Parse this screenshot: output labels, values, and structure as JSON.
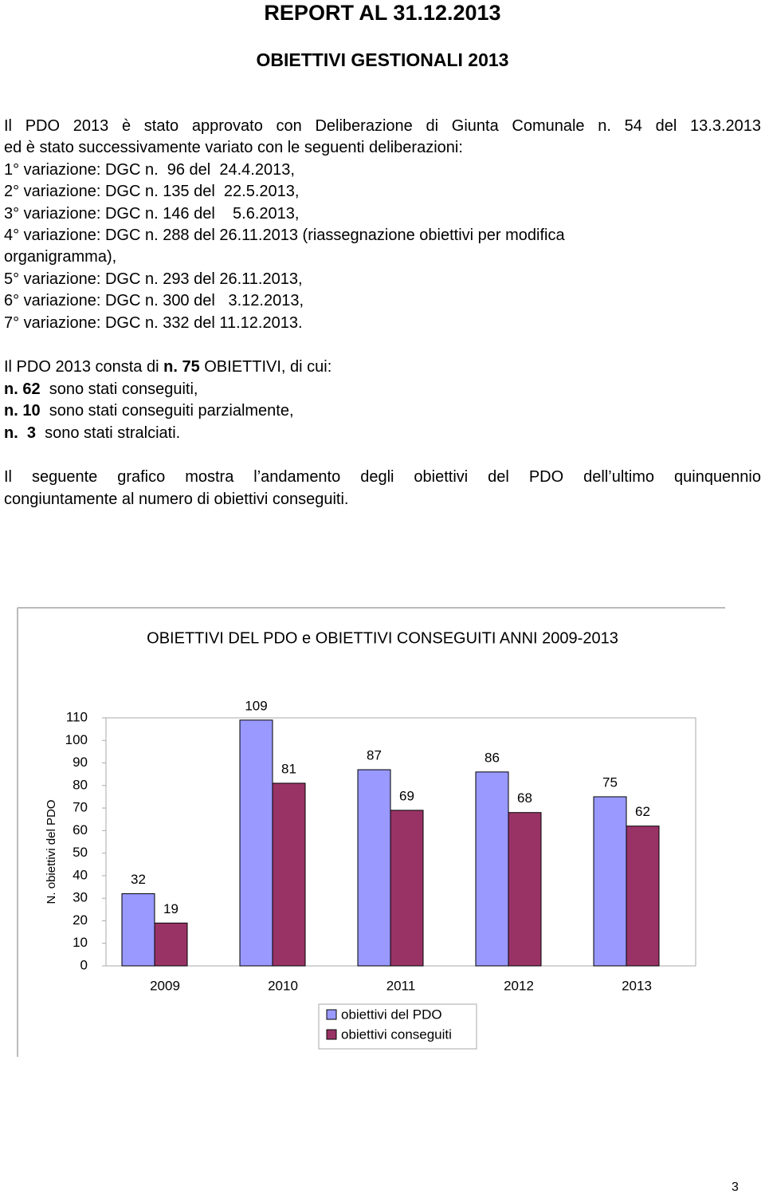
{
  "header": {
    "title": "REPORT AL 31.12.2013",
    "subtitle": "OBIETTIVI GESTIONALI 2013"
  },
  "intro": [
    "Il PDO 2013 è stato approvato con Deliberazione di Giunta Comunale n. 54 del 13.3.2013",
    "ed è stato successivamente variato con le seguenti deliberazioni:",
    "1° variazione: DGC n.  96 del  24.4.2013,",
    "2° variazione: DGC n. 135 del  22.5.2013,",
    "3° variazione: DGC n. 146 del    5.6.2013,",
    "4° variazione: DGC n. 288 del 26.11.2013 (riassegnazione obiettivi per modifica",
    "organigramma),",
    "5° variazione: DGC n. 293 del 26.11.2013,",
    "6° variazione: DGC n. 300 del   3.12.2013,",
    "7° variazione: DGC n. 332 del 11.12.2013."
  ],
  "summary": [
    {
      "text": "Il PDO 2013 consta di ",
      "bold": "n. 75",
      "after": " OBIETTIVI, di cui:"
    },
    {
      "bold": "n. 62",
      "after": "  sono stati conseguiti,"
    },
    {
      "bold": "n. 10",
      "after": "  sono stati conseguiti parzialmente,"
    },
    {
      "bold": "n.  3",
      "after": "  sono stati stralciati."
    }
  ],
  "closing": [
    "Il seguente grafico mostra l’andamento degli obiettivi del PDO dell’ultimo quinquennio",
    "congiuntamente al numero di obiettivi conseguiti."
  ],
  "chart_data": {
    "type": "bar",
    "title": "OBIETTIVI DEL PDO e OBIETTIVI CONSEGUITI ANNI 2009-2013",
    "y_label": "N. obiettivi del PDO",
    "categories": [
      "2009",
      "2010",
      "2011",
      "2012",
      "2013"
    ],
    "series": [
      {
        "name": "obiettivi del PDO",
        "color": "#9999ff",
        "values": [
          32,
          109,
          87,
          86,
          75
        ]
      },
      {
        "name": "obiettivi conseguiti",
        "color": "#993366",
        "values": [
          19,
          81,
          69,
          68,
          62
        ]
      }
    ],
    "ylim": [
      0,
      110
    ],
    "yticks": [
      0,
      10,
      20,
      30,
      40,
      50,
      60,
      70,
      80,
      90,
      100,
      110
    ],
    "grid": false,
    "legend": "bottom"
  },
  "page_number": "3"
}
